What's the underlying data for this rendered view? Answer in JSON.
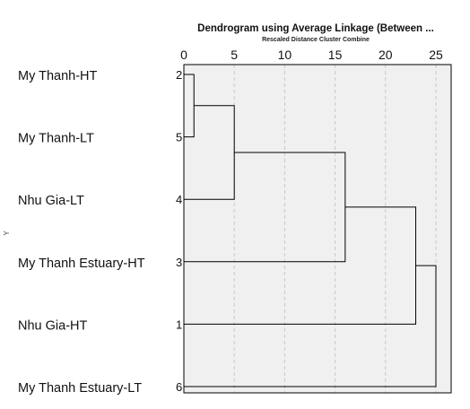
{
  "chart_data": {
    "type": "dendrogram",
    "title": "Dendrogram using Average Linkage (Between ...",
    "subtitle": "Rescaled Distance Cluster Combine",
    "ylabel": "Y",
    "xlim": [
      0,
      25
    ],
    "x_ticks": [
      "0",
      "5",
      "10",
      "15",
      "20",
      "25"
    ],
    "grid": true,
    "leaves": [
      {
        "label": "My Thanh-HT",
        "case": "2"
      },
      {
        "label": "My Thanh-LT",
        "case": "5"
      },
      {
        "label": "Nhu Gia-LT",
        "case": "4"
      },
      {
        "label": "My Thanh Estuary-HT",
        "case": "3"
      },
      {
        "label": "Nhu Gia-HT",
        "case": "1"
      },
      {
        "label": "My Thanh Estuary-LT",
        "case": "6"
      }
    ],
    "merges": [
      {
        "a": 0,
        "b": 1,
        "distance": 1
      },
      {
        "a": 6,
        "b": 2,
        "distance": 5
      },
      {
        "a": 7,
        "b": 3,
        "distance": 16
      },
      {
        "a": 8,
        "b": 4,
        "distance": 23
      },
      {
        "a": 9,
        "b": 5,
        "distance": 25
      }
    ],
    "colors": {
      "plot_background": "#f0f0f0",
      "line": "#000000",
      "grid": "#c8c8c8"
    }
  }
}
